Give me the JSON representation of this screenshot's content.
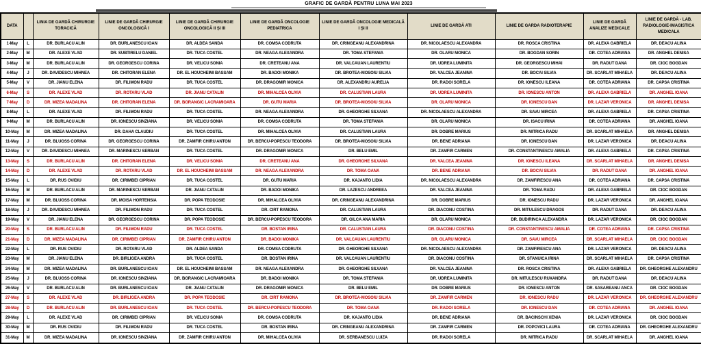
{
  "title": "GRAFIC DE GARDĂ PENTRU LUNA MAI 2023",
  "colors": {
    "header_bg": "#e2dcc8",
    "weekend_text": "#c00000",
    "text": "#000000",
    "border": "#000000"
  },
  "table": {
    "columns": [
      "DATA",
      "",
      "LINIA DE GARDĂ CHIRURGIE TORACICĂ",
      "LINIE DE GARDĂ CHIRURGIE ONCOLOGICĂ I",
      "LINIE DE GARDĂ CHIRURGIE ONCOLOGICĂ II ȘI III",
      "LINIE DE GARDĂ ONCOLOGIE PEDIATRICA",
      "LINIE DE GARDĂ ONCOLOGIE MEDICALĂ I ȘI II",
      "LINIE DE GARDĂ ATI",
      "LINIE DE GARDA RADIOTERAPIE",
      "LINIE DE GARDĂ ANALIZE MEDICALE",
      "LINIE DE GARDĂ - LAB. RADIOLOGIE-IMAGISTICA MEDICALA"
    ],
    "rows": [
      {
        "date": "1-May",
        "day": "L",
        "weekend": false,
        "cells": [
          "DR. BURLACU ALIN",
          "DR. BURLANESCU IOAN",
          "DR. ALDEA SANDA",
          "DR. COMSA CODRUTA",
          "DR. CRINGEANU ALEXANDRINA",
          "DR. NICOLAESCU ALEXANDRA",
          "DR. ROSCA CRISTINA",
          "DR. ALEXA GABRIELA",
          "DR. DEACU ALINA"
        ]
      },
      {
        "date": "2-May",
        "day": "M",
        "weekend": false,
        "cells": [
          "DR. ALEXE VLAD",
          "DR. SUBTIRELU DANIEL",
          "DR. TUCA COSTEL",
          "DR. NEAGA ALEXANDRA",
          "DR. TOMA STEFANIA",
          "DR. OLARU MONICA",
          "DR. BOGDAN SORIN",
          "DR. COTEA ADRIANA",
          "DR. ANGHEL DENISA"
        ]
      },
      {
        "date": "3-May",
        "day": "M",
        "weekend": false,
        "cells": [
          "DR. BURLACU ALIN",
          "DR. GEORGESCU CORINA",
          "DR. VELICU SONIA",
          "DR. CRETEANU ANA",
          "DR. VALCAUAN LAURENTIU",
          "DR. UDREA LUMINITA",
          "DR. GEORGESCU MIHAI",
          "DR. RADUT DANA",
          "DR. CIOC BOGDAN"
        ]
      },
      {
        "date": "4-May",
        "day": "J",
        "weekend": false,
        "cells": [
          "DR. DAVIDESCU MIHNEA",
          "DR. CHITORAN ELENA",
          "DR. EL HOUCHEIMI BASSAM",
          "DR. BADOI MONIKA",
          "DR. BROTEA-MOSOIU SILVIA",
          "DR. VALCEA JEANINA",
          "DR. BOCAI SILVIA",
          "DR. SCARLAT MIHAELA",
          "DR. DEACU ALINA"
        ]
      },
      {
        "date": "5-May",
        "day": "V",
        "weekend": false,
        "cells": [
          "DR. JIANU ELENA",
          "DR. FILIMON RADU",
          "DR. TUCA COSTEL",
          "DR. DRAGOMIR MONICA",
          "DR. ALEXANDRU AURELIA",
          "DR. RADOI SORELA",
          "DR. IONESCU ILEANA",
          "DR. COTEA ADRIANA",
          "DR. CAPSA CRISTINA"
        ]
      },
      {
        "date": "6-May",
        "day": "S",
        "weekend": true,
        "cells": [
          "DR. ALEXE VLAD",
          "DR. ROTARU VLAD",
          "DR. JIANU CATALIN",
          "DR. MIHALCEA OLIVIA",
          "DR. CALUSTIAN LAURA",
          "DR. UDREA LUMINITA",
          "DR. IONESCU ANTON",
          "DR. ALEXA GABRIELA",
          "DR. ANGHEL IOANA"
        ]
      },
      {
        "date": "7-May",
        "day": "D",
        "weekend": true,
        "cells": [
          "DR. MIZEA MADALINA",
          "DR. CHITORAN ELENA",
          "DR. BORANGIC LACRAMIOARA",
          "DR. GUTU MARIA",
          "DR. BROTEA-MOSOIU SILVIA",
          "DR. OLARU MONICA",
          "DR. IONESCU DAN",
          "DR. LAZAR VERONICA",
          "DR. ANGHEL DENISA"
        ]
      },
      {
        "date": "8-May",
        "day": "L",
        "weekend": false,
        "cells": [
          "DR. ALEXE VLAD",
          "DR. FILIMON RADU",
          "DR. TUCA COSTEL",
          "DR. NEAGA ALEXANDRA",
          "DR. GHEORGHE SILVANA",
          "DR. NICOLAESCU ALEXANDRA",
          "DR. SAVU MIRCEA",
          "DR. ALEXA GABRIELA",
          "DR. CAPSA CRISTINA"
        ]
      },
      {
        "date": "9-May",
        "day": "M",
        "weekend": false,
        "cells": [
          "DR. BURLACU ALIN",
          "DR. IONESCU SINZIANA",
          "DR. VELICU SONIA",
          "DR. COMSA CODRUTA",
          "DR. TOMA STEFANIA",
          "DR. OLARU MONICA",
          "DR. ISACU IRINA",
          "DR. COTEA ADRIANA",
          "DR. ANGHEL IOANA"
        ]
      },
      {
        "date": "10-May",
        "day": "M",
        "weekend": false,
        "cells": [
          "DR. MIZEA MADALINA",
          "DR. DAHA CLAUDIU",
          "DR. TUCA COSTEL",
          "DR. MIHALCEA OLIVIA",
          "DR. CALUSTIAN LAURA",
          "DR. DOBRE MARIUS",
          "DR. MITRICA RADU",
          "DR. SCARLAT MIHAELA",
          "DR. ANGHEL DENISA"
        ]
      },
      {
        "date": "11-May",
        "day": "J",
        "weekend": false,
        "cells": [
          "DR. BLUOSS CORINA",
          "DR. GEORGESCU CORINA",
          "DR. ZAMFIR CHIRU ANTON",
          "DR. BERCU-POPESCU TEODORA",
          "DR. BROTEA-MOSOIU SILVIA",
          "DR. BENE ADRIANA",
          "DR. IONESCU DAN",
          "DR. LAZAR VERONICA",
          "DR. DEACU ALINA"
        ]
      },
      {
        "date": "12-May",
        "day": "V",
        "weekend": false,
        "cells": [
          "DR. DAVIDESCU MIHNEA",
          "DR. MARINESCU SERBAN",
          "DR. TUCA COSTEL",
          "DR. DRAGOMIR MONICA",
          "DR. BELU EMIL",
          "DR. ZAMFIR CARMEN",
          "DR. CONSTANTINESCU AMALIA",
          "DR. ALEXA GABRIELA",
          "DR. CAPSA CRISTINA"
        ]
      },
      {
        "date": "13-May",
        "day": "S",
        "weekend": true,
        "cells": [
          "DR. BURLACU ALIN",
          "DR. CHITORAN ELENA",
          "DR. VELICU SONIA",
          "DR. CRETEANU ANA",
          "DR. GHEORGHE SILVANA",
          "DR. VALCEA JEANINA",
          "DR. IONESCU ILEANA",
          "DR. SCARLAT MIHAELA",
          "DR. ANGHEL DENISA"
        ]
      },
      {
        "date": "14-May",
        "day": "D",
        "weekend": true,
        "cells": [
          "DR. ALEXE VLAD",
          "DR. ROTARU VLAD",
          "DR. EL HOUCHEIMI BASSAM",
          "DR. NEAGA ALEXANDRA",
          "DR. TOMA OANA",
          "DR. BENE ADRIANA",
          "DR. BOCAI SILVIA",
          "DR. RADUT DANA",
          "DR. ANGHEL IOANA"
        ]
      },
      {
        "date": "15-May",
        "day": "L",
        "weekend": false,
        "cells": [
          "DR. RUS OVIDIU",
          "DR. CIRIMBEI CIPRIAN",
          "DR. TUCA COSTEL",
          "DR. GUTU MARIA",
          "DR. KAJANTO LIDIA",
          "DR. NICOLAESCU ALEXANDRA",
          "DR. ZAMFIRESCU ANA",
          "DR. COTEA ADRIANA",
          "DR. CAPSA CRISTINA"
        ]
      },
      {
        "date": "16-May",
        "day": "M",
        "weekend": false,
        "cells": [
          "DR. BURLACU ALIN",
          "DR. MARINESCU SERBAN",
          "DR. JIANU CATALIN",
          "DR. BADOI MONIKA",
          "DR. LAZESCU ANDREEA",
          "DR. VALCEA JEANINA",
          "DR. TOMA RADU",
          "DR. ALEXA GABRIELA",
          "DR. CIOC BOGDAN"
        ]
      },
      {
        "date": "17-May",
        "day": "M",
        "weekend": false,
        "cells": [
          "DR. BLUOSS CORINA",
          "DR. MOISA HORTENSIA",
          "DR. POPA TEODOSIE",
          "DR. MIHALCEA OLIVIA",
          "DR. CRINGEANU ALEXANDRINA",
          "DR. DOBRE MARIUS",
          "DR. IONESCU RADU",
          "DR. LAZAR VERONICA",
          "DR. ANGHEL IOANA"
        ]
      },
      {
        "date": "18-May",
        "day": "J",
        "weekend": false,
        "cells": [
          "DR. DAVIDESCU MIHNEA",
          "DR. FILIMON RADU",
          "DR. TUCA COSTEL",
          "DR. CIRT RAMONA",
          "DR. CALUSTIAN LAURA",
          "DR. DIACONU COSTINA",
          "DR. MITULESCU DRAGOS",
          "DR. RADUT DANA",
          "DR. DEACU ALINA"
        ]
      },
      {
        "date": "19-May",
        "day": "V",
        "weekend": false,
        "cells": [
          "DR. JIANU ELENA",
          "DR. GEORGESCU CORINA",
          "DR. POPA TEODOSIE",
          "DR. BERCU-POPESCU TEODORA",
          "DR. GILCA ANA MARIA",
          "DR. OLARU MONICA",
          "DR. BUDIRINCA ALEXANDRA",
          "DR. LAZAR VERONICA",
          "DR. CIOC BOGDAN"
        ]
      },
      {
        "date": "20-May",
        "day": "S",
        "weekend": true,
        "cells": [
          "DR. BURLACU ALIN",
          "DR. FILIMON RADU",
          "DR. TUCA COSTEL",
          "DR. BOSTAN IRINA",
          "DR. CALUSTIAN LAURA",
          "DR. DIACONU COSTINA",
          "DR. CONSTANTINESCU AMALIA",
          "DR. COTEA ADRIANA",
          "DR. CAPSA CRISTINA"
        ]
      },
      {
        "date": "21-May",
        "day": "D",
        "weekend": true,
        "cells": [
          "DR. MIZEA MADALINA",
          "DR. CIRIMBEI CIPRIAN",
          "DR. ZAMFIR CHIRU ANTON",
          "DR. BADOI MONIKA",
          "DR. VALCAUAN LAURENTIU",
          "DR. OLARU MONICA",
          "DR. SAVU MIRCEA",
          "DR. SCARLAT MIHAELA",
          "DR. CIOC BOGDAN"
        ]
      },
      {
        "date": "22-May",
        "day": "L",
        "weekend": false,
        "cells": [
          "DR. RUS OVIDIU",
          "DR. ROTARU VLAD",
          "DR. ALDEA SANDA",
          "DR. COMSA CODRUTA",
          "DR. GHEORGHE SILVANA",
          "DR. NICOLAESCU ALEXANDRA",
          "DR. ZAMFIRESCU ANA",
          "DR. LAZAR VERONICA",
          "DR. DEACU ALINA"
        ]
      },
      {
        "date": "23-May",
        "day": "M",
        "weekend": false,
        "cells": [
          "DR. JIANU ELENA",
          "DR. BIRLIGEA ANDRA",
          "DR. TUCA COSTEL",
          "DR. BOSTAN IRINA",
          "DR. VALCAUAN LAURENTIU",
          "DR. DIACONU COSTINA",
          "DR. STANUICA IRINA",
          "DR. SCARLAT MIHAELA",
          "DR. CAPSA CRISTINA"
        ]
      },
      {
        "date": "24-May",
        "day": "M",
        "weekend": false,
        "cells": [
          "DR. MIZEA MADALINA",
          "DR. BURLANESCU IOAN",
          "DR. EL HOUCHEIMI BASSAM",
          "DR. NEAGA ALEXANDRA",
          "DR. GHEORGHE SILVANA",
          "DR. VALCEA JEANINA",
          "DR. ROSCA CRISTINA",
          "DR. ALEXA GABRIELA",
          "DR. GHEORGHE ALEXANDRU"
        ]
      },
      {
        "date": "25-May",
        "day": "J",
        "weekend": false,
        "cells": [
          "DR. BLUOSS CORINA",
          "DR. IONESCU SINZIANA",
          "DR. BORANGIC LACRAMIOARA",
          "DR. BADOI MONIKA",
          "DR. TOMA STEFANIA",
          "DR. UDREA LUMINITA",
          "DR. MITULESCU RUXANDRA",
          "DR. RADUT DANA",
          "DR. DEACU ALINA"
        ]
      },
      {
        "date": "26-May",
        "day": "V",
        "weekend": false,
        "cells": [
          "DR. BURLACU ALIN",
          "DR. BURLANESCU IOAN",
          "DR. JIANU CATALIN",
          "DR. DRAGOMIR MONICA",
          "DR. BELU EMIL",
          "DR. DOBRE MARIUS",
          "DR. IONESCU ANTON",
          "DR. SASAREANU ANCA",
          "DR. CIOC BOGDAN"
        ]
      },
      {
        "date": "27-May",
        "day": "S",
        "weekend": true,
        "cells": [
          "DR. ALEXE VLAD",
          "DR. BIRLIGEA ANDRA",
          "DR. POPA TEODOSIE",
          "DR. CIRT RAMONA",
          "DR. BROTEA-MOSOIU SILVIA",
          "DR. ZAMFIR CARMEN",
          "DR. IONESCU RADU",
          "DR. LAZAR VERONICA",
          "DR. GHEORGHE ALEXANDRU"
        ]
      },
      {
        "date": "28-May",
        "day": "D",
        "weekend": true,
        "cells": [
          "DR. BURLACU ALIN",
          "DR. BURLANESCU IOAN",
          "DR. TUCA COSTEL",
          "DR. BERCU-POPESCU TEODORA",
          "DR. TOMA OANA",
          "DR. RADOI SORELA",
          "DR. IONESCU DAN",
          "DR. COTEA ADRIANA",
          "DR. ANGHEL IOANA"
        ]
      },
      {
        "date": "29-May",
        "day": "L",
        "weekend": false,
        "cells": [
          "DR. ALEXE VLAD",
          "DR. CIRIMBEI CIPRIAN",
          "DR. VELICU SONIA",
          "DR. COMSA CODRUTA",
          "DR. KAJANTO LIDIA",
          "DR. BENE ADRIANA",
          "DR. BACINSCHI XENIA",
          "DR. LAZAR VERONICA",
          "DR. CIOC BOGDAN"
        ]
      },
      {
        "date": "30-May",
        "day": "M",
        "weekend": false,
        "cells": [
          "DR. RUS OVIDIU",
          "DR. FILIMON RADU",
          "DR. TUCA COSTEL",
          "DR. BOSTAN IRINA",
          "DR. CRINGEANU ALEXANDRINA",
          "DR. ZAMFIR CARMEN",
          "DR. POPOVICI LAURA",
          "DR. COTEA ADRIANA",
          "DR. GHEORGHE ALEXANDRU"
        ]
      },
      {
        "date": "31-May",
        "day": "M",
        "weekend": false,
        "cells": [
          "DR. MIZEA MADALINA",
          "DR. IONESCU SINZIANA",
          "DR. ZAMFIR CHIRU ANTON",
          "DR. MIHALCEA OLIVIA",
          "DR. SERBANESCU LUIZA",
          "DR. RADOI SORELA",
          "DR. MITRICA RADU",
          "DR. SCARLAT MIHAELA",
          "DR. ANGHEL IOANA"
        ]
      }
    ]
  }
}
